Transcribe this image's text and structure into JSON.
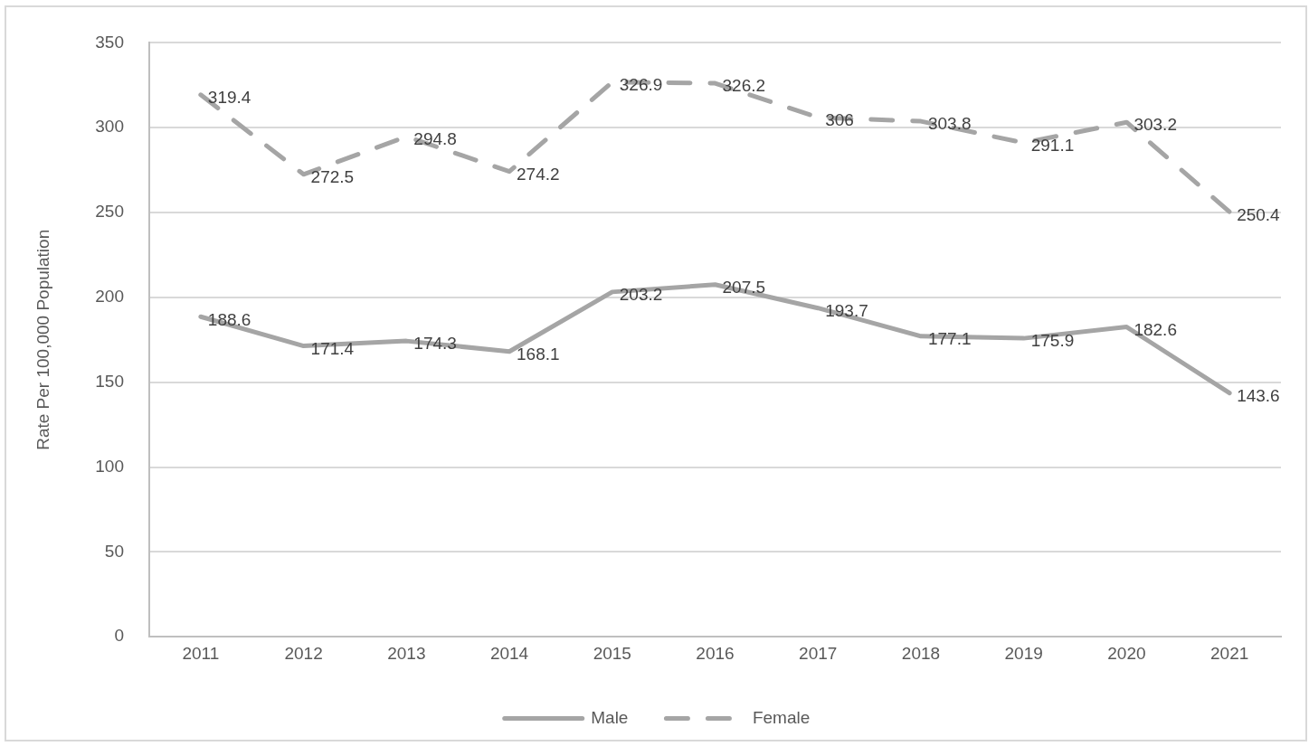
{
  "chart_data": {
    "type": "line",
    "categories": [
      "2011",
      "2012",
      "2013",
      "2014",
      "2015",
      "2016",
      "2017",
      "2018",
      "2019",
      "2020",
      "2021"
    ],
    "ylabel": "Rate Per 100,000 Population",
    "ylim": [
      0,
      350
    ],
    "yticks": [
      0,
      50,
      100,
      150,
      200,
      250,
      300,
      350
    ],
    "grid": "y",
    "legend": "bottom",
    "data_labels": true,
    "marker": "none",
    "series": [
      {
        "name": "Male",
        "color": "#a5a5a5",
        "line_style": "solid",
        "values": [
          188.6,
          171.4,
          174.3,
          168.1,
          203.2,
          207.5,
          193.7,
          177.1,
          175.9,
          182.6,
          143.6
        ]
      },
      {
        "name": "Female",
        "color": "#a5a5a5",
        "line_style": "dashed",
        "values": [
          319.4,
          272.5,
          294.8,
          274.2,
          326.9,
          326.2,
          306,
          303.8,
          291.1,
          303.2,
          250.4
        ]
      }
    ]
  }
}
